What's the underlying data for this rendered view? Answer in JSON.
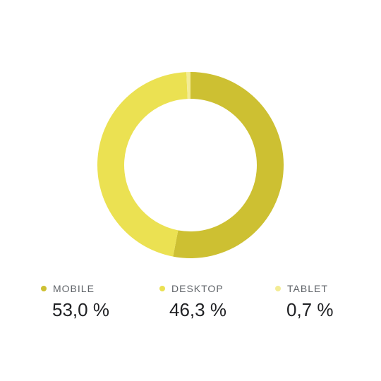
{
  "chart_data": {
    "type": "pie",
    "style": "donut",
    "legend_position": "bottom",
    "series": [
      {
        "name": "MOBILE",
        "value": 53.0,
        "label": "53,0 %",
        "color": "#cdc032"
      },
      {
        "name": "DESKTOP",
        "value": 46.3,
        "label": "46,3 %",
        "color": "#ebe152"
      },
      {
        "name": "TABLET",
        "value": 0.7,
        "label": "0,7 %",
        "color": "#f3ec95"
      }
    ]
  }
}
